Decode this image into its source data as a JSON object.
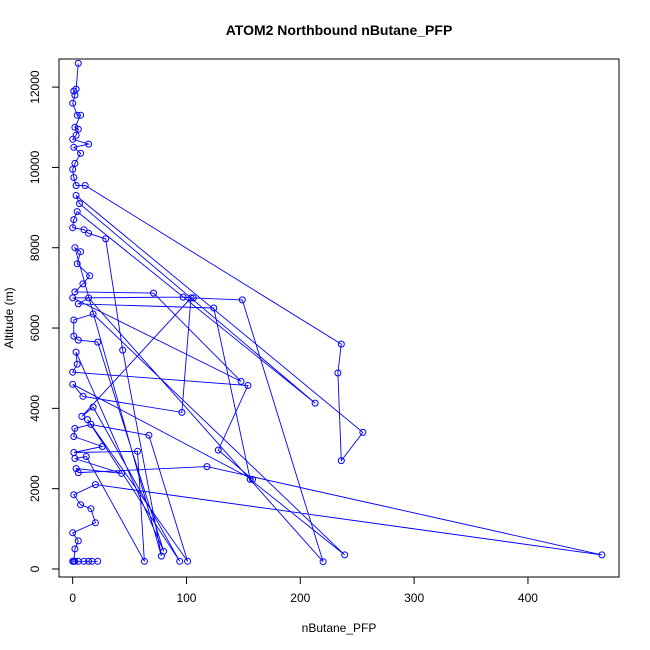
{
  "chart_data": {
    "type": "line",
    "title": "ATOM2 Northbound nButane_PFP",
    "xlabel": "nButane_PFP",
    "ylabel": "Altitude (m)",
    "xlim": [
      -12,
      480
    ],
    "ylim": [
      -200,
      12700
    ],
    "xticks": [
      0,
      100,
      200,
      300,
      400
    ],
    "yticks": [
      0,
      2000,
      4000,
      6000,
      8000,
      10000,
      12000
    ],
    "xtick_labels": [
      "0",
      "100",
      "200",
      "300",
      "400"
    ],
    "ytick_labels": [
      "0",
      "2000",
      "4000",
      "6000",
      "8000",
      "10000",
      "12000"
    ],
    "grid": false,
    "series": [
      {
        "color": "#0000FF",
        "marker": "open-circle",
        "points": [
          [
            5,
            12590
          ],
          [
            3,
            11950
          ],
          [
            1,
            11900
          ],
          [
            2,
            11800
          ],
          [
            0,
            11600
          ],
          [
            4,
            11300
          ],
          [
            7,
            11300
          ],
          [
            2,
            11000
          ],
          [
            5,
            10950
          ],
          [
            3,
            10800
          ],
          [
            0,
            10700
          ],
          [
            14,
            10580
          ],
          [
            1,
            10500
          ],
          [
            7,
            10350
          ],
          [
            2,
            10100
          ],
          [
            0,
            9950
          ],
          [
            1,
            9750
          ],
          [
            3,
            9550
          ],
          [
            11,
            9550
          ],
          [
            236,
            5600
          ],
          [
            233,
            4880
          ],
          [
            236,
            2700
          ],
          [
            255,
            3400
          ],
          [
            3,
            9300
          ],
          [
            6,
            9100
          ],
          [
            213,
            4130
          ],
          [
            4,
            8900
          ],
          [
            1,
            8700
          ],
          [
            0,
            8500
          ],
          [
            10,
            8450
          ],
          [
            14,
            8360
          ],
          [
            29,
            8220
          ],
          [
            44,
            5450
          ],
          [
            78,
            320
          ],
          [
            2,
            8000
          ],
          [
            7,
            7900
          ],
          [
            4,
            7600
          ],
          [
            15,
            7300
          ],
          [
            9,
            7100
          ],
          [
            2,
            6900
          ],
          [
            71,
            6870
          ],
          [
            148,
            4670
          ],
          [
            0,
            6750
          ],
          [
            97,
            6770
          ],
          [
            106,
            6750
          ],
          [
            149,
            6700
          ],
          [
            220,
            180
          ],
          [
            14,
            6750
          ],
          [
            5,
            6600
          ],
          [
            124,
            6500
          ],
          [
            156,
            2230
          ],
          [
            239,
            350
          ],
          [
            18,
            6350
          ],
          [
            1,
            6200
          ],
          [
            1,
            5800
          ],
          [
            5,
            5700
          ],
          [
            22,
            5650
          ],
          [
            80,
            440
          ],
          [
            3,
            5400
          ],
          [
            4,
            5100
          ],
          [
            0,
            4900
          ],
          [
            154,
            4570
          ],
          [
            128,
            2960
          ],
          [
            158,
            2230
          ],
          [
            0,
            4600
          ],
          [
            9,
            4300
          ],
          [
            96,
            3900
          ],
          [
            104,
            6750
          ],
          [
            8,
            3800
          ],
          [
            18,
            4030
          ],
          [
            94,
            190
          ],
          [
            13,
            3720
          ],
          [
            101,
            190
          ],
          [
            67,
            3330
          ],
          [
            16,
            3600
          ],
          [
            2,
            3500
          ],
          [
            1,
            3300
          ],
          [
            26,
            3050
          ],
          [
            1,
            2900
          ],
          [
            57,
            2930
          ],
          [
            63,
            190
          ],
          [
            12,
            2800
          ],
          [
            2,
            2750
          ],
          [
            43,
            2380
          ],
          [
            3,
            2500
          ],
          [
            5,
            2400
          ],
          [
            118,
            2550
          ],
          [
            465,
            350
          ],
          [
            20,
            2100
          ],
          [
            1,
            1850
          ],
          [
            7,
            1600
          ],
          [
            16,
            1500
          ],
          [
            20,
            1150
          ],
          [
            0,
            900
          ],
          [
            5,
            700
          ],
          [
            2,
            500
          ],
          [
            1,
            190
          ],
          [
            5,
            190
          ],
          [
            10,
            190
          ],
          [
            14,
            190
          ],
          [
            17,
            190
          ],
          [
            22,
            190
          ],
          [
            0,
            190
          ],
          [
            2,
            190
          ]
        ]
      }
    ]
  }
}
